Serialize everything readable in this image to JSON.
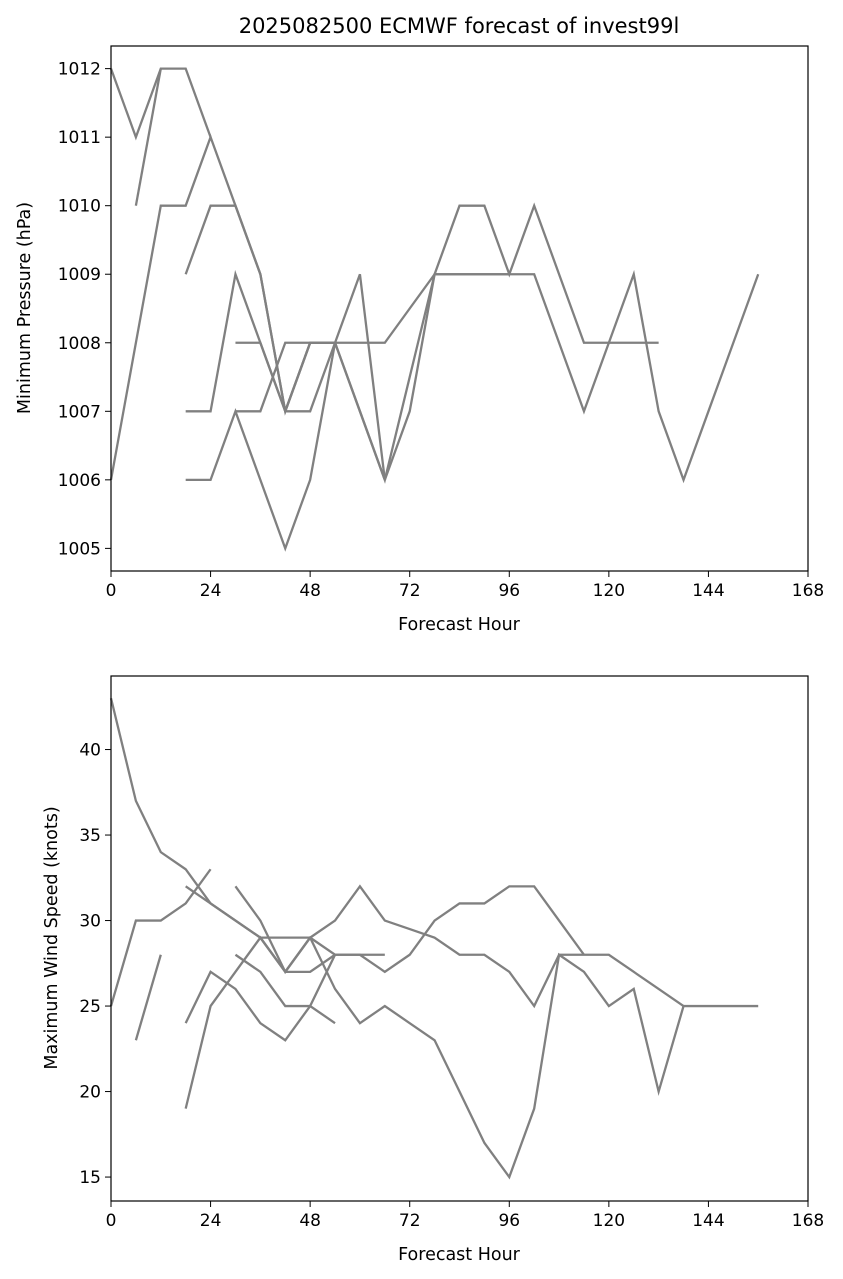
{
  "chart_data": [
    {
      "type": "line",
      "title": "2025082500 ECMWF forecast of invest99l",
      "xlabel": "Forecast Hour",
      "ylabel": "Minimum Pressure (hPa)",
      "xlim": [
        0,
        168
      ],
      "ylim": [
        1004.67,
        1012.33
      ],
      "xticks": [
        0,
        24,
        48,
        72,
        96,
        120,
        144,
        168
      ],
      "yticks": [
        1005,
        1006,
        1007,
        1008,
        1009,
        1010,
        1011,
        1012
      ],
      "line_color": "#808080",
      "series": [
        {
          "x": [
            0,
            6,
            12,
            18,
            24
          ],
          "y": [
            1012,
            1011,
            1012,
            1012,
            1011
          ]
        },
        {
          "x": [
            0,
            12,
            18,
            24,
            30,
            36,
            42,
            48,
            54,
            60,
            66,
            72,
            78,
            84,
            90,
            96,
            102,
            108,
            114,
            120,
            126,
            132,
            138,
            144,
            150,
            156
          ],
          "y": [
            1006,
            1010,
            1010,
            1011,
            1010,
            1009,
            1007,
            1008,
            1008,
            1008,
            1008,
            1008.5,
            1009,
            1009,
            1009,
            1009,
            1009,
            1008,
            1007,
            1008,
            1009,
            1007,
            1006,
            1007,
            1008,
            1009
          ]
        },
        {
          "x": [
            6,
            12
          ],
          "y": [
            1010,
            1012
          ]
        },
        {
          "x": [
            18,
            24,
            30,
            36,
            42,
            48,
            54,
            60,
            66,
            72,
            78,
            84,
            90,
            96,
            102,
            108,
            114,
            120,
            126,
            132
          ],
          "y": [
            1009,
            1010,
            1010,
            1009,
            1007,
            1007,
            1008,
            1009,
            1006,
            1007,
            1009,
            1010,
            1010,
            1009,
            1010,
            1009,
            1008,
            1008,
            1008,
            1008
          ]
        },
        {
          "x": [
            18,
            24,
            30,
            36,
            42,
            48,
            54,
            60,
            66
          ],
          "y": [
            1007,
            1007,
            1009,
            1008,
            1007,
            1008,
            1008,
            1007,
            1006
          ]
        },
        {
          "x": [
            18,
            24,
            30,
            36,
            42,
            48,
            54
          ],
          "y": [
            1006,
            1006,
            1007,
            1006,
            1005,
            1006,
            1008
          ]
        },
        {
          "x": [
            30,
            36,
            42,
            48
          ],
          "y": [
            1008,
            1008,
            1007,
            1008
          ]
        },
        {
          "x": [
            30,
            36,
            42,
            48,
            54,
            60,
            66,
            72,
            78,
            84,
            90,
            96
          ],
          "y": [
            1007,
            1007,
            1008,
            1008,
            1008,
            1007,
            1006,
            1007.5,
            1009,
            1009,
            1009,
            1009
          ]
        }
      ]
    },
    {
      "type": "line",
      "title": "",
      "xlabel": "Forecast Hour",
      "ylabel": "Maximum Wind Speed (knots)",
      "xlim": [
        0,
        168
      ],
      "ylim": [
        13.6,
        44.3
      ],
      "xticks": [
        0,
        24,
        48,
        72,
        96,
        120,
        144,
        168
      ],
      "yticks": [
        15,
        20,
        25,
        30,
        35,
        40
      ],
      "line_color": "#808080",
      "series": [
        {
          "x": [
            0,
            6,
            12,
            18,
            24,
            30,
            36,
            42,
            48,
            54,
            60,
            66,
            72,
            78,
            84,
            90,
            96,
            102,
            108,
            114,
            120,
            126,
            132,
            138,
            144,
            150,
            156
          ],
          "y": [
            43,
            37,
            34,
            33,
            31,
            30,
            29,
            29,
            29,
            26,
            24,
            25,
            24,
            23,
            20,
            17,
            15,
            19,
            28,
            27,
            25,
            26,
            20,
            25,
            25,
            25,
            25
          ]
        },
        {
          "x": [
            0,
            6,
            12,
            18,
            24
          ],
          "y": [
            25,
            30,
            30,
            31,
            33
          ]
        },
        {
          "x": [
            6,
            12
          ],
          "y": [
            23,
            28
          ]
        },
        {
          "x": [
            18,
            24,
            30,
            36,
            42,
            48,
            54,
            60,
            66,
            72,
            78,
            84,
            90,
            96,
            102,
            108,
            114,
            120,
            126,
            132,
            138
          ],
          "y": [
            32,
            31,
            30,
            29,
            27,
            29,
            30,
            32,
            30,
            29.5,
            29,
            28,
            28,
            27,
            25,
            28,
            28,
            28,
            27,
            26,
            25
          ]
        },
        {
          "x": [
            18,
            24,
            30,
            36,
            42,
            48,
            54,
            60,
            66,
            72,
            78,
            84,
            90,
            96,
            102,
            108,
            114
          ],
          "y": [
            24,
            27,
            26,
            24,
            23,
            25,
            28,
            28,
            27,
            28,
            30,
            31,
            31,
            32,
            32,
            30,
            28
          ]
        },
        {
          "x": [
            18,
            24,
            30,
            36,
            42,
            48,
            54
          ],
          "y": [
            19,
            25,
            27,
            29,
            27,
            27,
            28
          ]
        },
        {
          "x": [
            30,
            36,
            42,
            48,
            54
          ],
          "y": [
            28,
            27,
            25,
            25,
            24
          ]
        },
        {
          "x": [
            30,
            36,
            42,
            48,
            54,
            60,
            66
          ],
          "y": [
            32,
            30,
            27,
            29,
            28,
            28,
            28
          ]
        }
      ]
    }
  ]
}
